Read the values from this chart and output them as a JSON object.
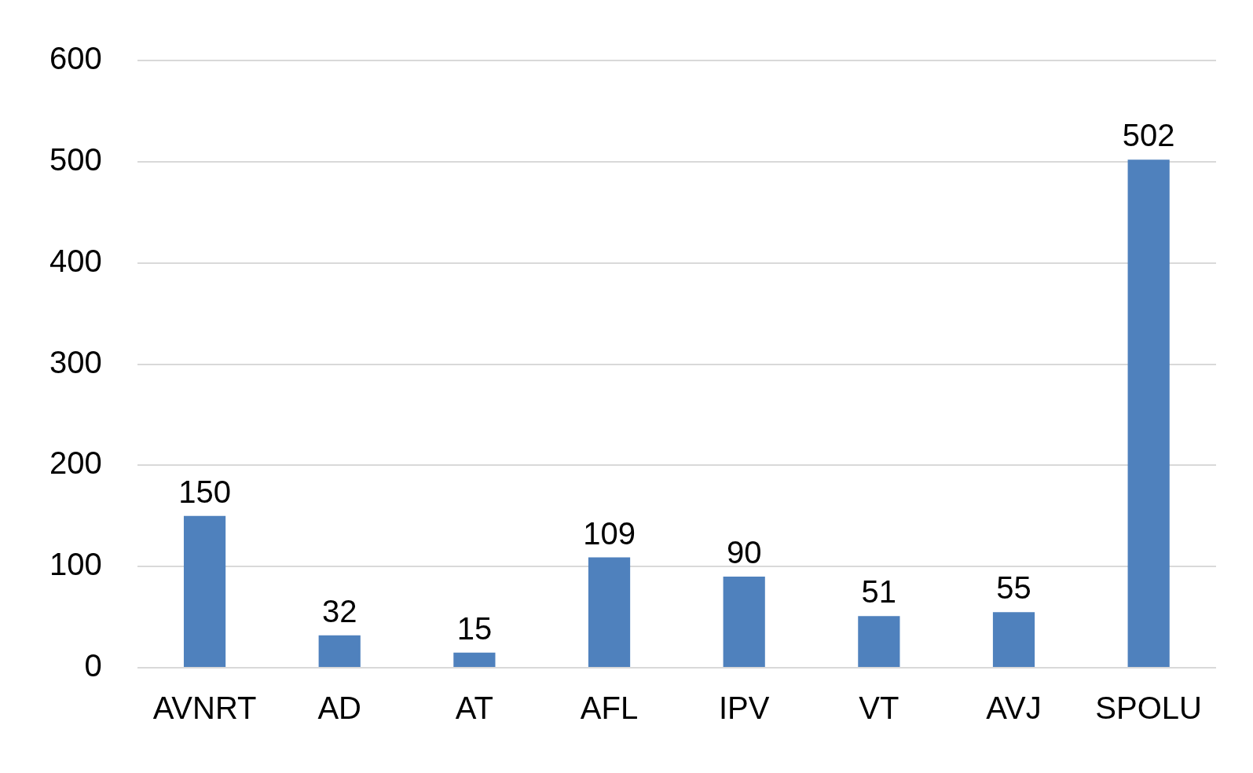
{
  "chart_data": {
    "type": "bar",
    "categories": [
      "AVNRT",
      "AD",
      "AT",
      "AFL",
      "IPV",
      "VT",
      "AVJ",
      "SPOLU"
    ],
    "values": [
      150,
      32,
      15,
      109,
      90,
      51,
      55,
      502
    ],
    "color": "#4f81bd",
    "ylim": [
      0,
      600
    ],
    "yticks": [
      0,
      100,
      200,
      300,
      400,
      500,
      600
    ],
    "grid": "y",
    "data_labels": true
  }
}
